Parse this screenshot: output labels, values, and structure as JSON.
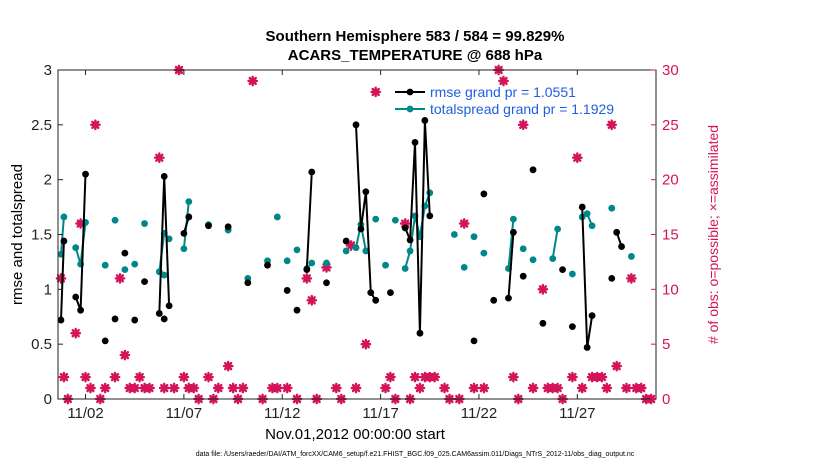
{
  "chart_data": {
    "type": "line",
    "title": "Southern Hemisphere 583 / 584 = 99.829%",
    "subtitle": "ACARS_TEMPERATURE @ 688 hPa",
    "xlabel": "Nov.01,2012 00:00:00 start",
    "ylabel": "rmse and totalspread",
    "y2label": "# of obs: o=possible; ×=assimilated",
    "xlim": [
      0.6,
      31.0
    ],
    "ylim": [
      0,
      3
    ],
    "y2lim": [
      0,
      30
    ],
    "x_ticks": [
      2,
      7,
      12,
      17,
      22,
      27
    ],
    "x_tick_labels": [
      "11/02",
      "11/07",
      "11/12",
      "11/17",
      "11/22",
      "11/27"
    ],
    "y_ticks": [
      0,
      0.5,
      1,
      1.5,
      2,
      2.5,
      3
    ],
    "y_tick_labels": [
      "0",
      "0.5",
      "1",
      "1.5",
      "2",
      "2.5",
      "3"
    ],
    "y2_ticks": [
      0,
      5,
      10,
      15,
      20,
      25,
      30
    ],
    "y2_tick_labels": [
      "0",
      "5",
      "10",
      "15",
      "20",
      "25",
      "30"
    ],
    "grid": false,
    "legend_position": "top-right",
    "colors": {
      "rmse": "#000000",
      "spread": "#00878a",
      "obs": "#d4145a",
      "legend_text": "#1f5fe0"
    },
    "series": [
      {
        "name": "rmse grand pr = 1.0551",
        "color": "#000000",
        "segments": [
          [
            [
              0.75,
              0.72
            ],
            [
              0.9,
              1.44
            ]
          ],
          [
            [
              1.5,
              0.93
            ],
            [
              1.75,
              0.81
            ],
            [
              2.0,
              2.05
            ]
          ],
          [
            [
              5.75,
              0.78
            ],
            [
              6.0,
              2.03
            ],
            [
              6.25,
              0.85
            ]
          ],
          [
            [
              7.0,
              1.51
            ],
            [
              7.25,
              1.66
            ]
          ],
          [
            [
              13.25,
              1.18
            ],
            [
              13.5,
              2.07
            ]
          ],
          [
            [
              15.75,
              2.5
            ],
            [
              16.0,
              1.55
            ],
            [
              16.25,
              1.89
            ],
            [
              16.5,
              0.97
            ],
            [
              16.75,
              0.9
            ]
          ],
          [
            [
              18.25,
              1.56
            ],
            [
              18.5,
              1.45
            ],
            [
              18.75,
              2.34
            ],
            [
              19.0,
              0.6
            ],
            [
              19.25,
              2.54
            ],
            [
              19.5,
              1.67
            ]
          ],
          [
            [
              23.5,
              0.92
            ],
            [
              23.75,
              1.52
            ]
          ],
          [
            [
              27.25,
              1.75
            ],
            [
              27.5,
              0.47
            ],
            [
              27.75,
              0.76
            ]
          ],
          [
            [
              29.0,
              1.52
            ],
            [
              29.25,
              1.39
            ]
          ]
        ],
        "points": [
          [
            3.0,
            0.53
          ],
          [
            3.5,
            0.73
          ],
          [
            4.0,
            1.33
          ],
          [
            4.5,
            0.72
          ],
          [
            5.0,
            1.07
          ],
          [
            6.0,
            0.73
          ],
          [
            8.25,
            1.58
          ],
          [
            9.25,
            1.57
          ],
          [
            10.25,
            1.06
          ],
          [
            11.25,
            1.22
          ],
          [
            12.25,
            0.99
          ],
          [
            12.75,
            0.81
          ],
          [
            14.25,
            1.06
          ],
          [
            15.25,
            1.44
          ],
          [
            17.5,
            0.97
          ],
          [
            21.75,
            0.53
          ],
          [
            22.25,
            1.87
          ],
          [
            22.75,
            0.9
          ],
          [
            24.25,
            1.12
          ],
          [
            24.75,
            2.09
          ],
          [
            25.25,
            0.69
          ],
          [
            26.25,
            1.18
          ],
          [
            26.75,
            0.66
          ],
          [
            28.75,
            1.1
          ]
        ]
      },
      {
        "name": "totalspread grand pr = 1.1929",
        "color": "#00878a",
        "segments": [
          [
            [
              0.75,
              1.32
            ],
            [
              0.9,
              1.66
            ]
          ],
          [
            [
              1.5,
              1.38
            ],
            [
              1.75,
              1.23
            ],
            [
              2.0,
              1.61
            ]
          ],
          [
            [
              5.75,
              1.16
            ],
            [
              6.0,
              1.51
            ],
            [
              6.25,
              1.46
            ]
          ],
          [
            [
              7.0,
              1.37
            ],
            [
              7.25,
              1.8
            ]
          ],
          [
            [
              13.25,
              1.19
            ],
            [
              13.5,
              1.24
            ]
          ],
          [
            [
              15.75,
              1.38
            ],
            [
              16.0,
              1.59
            ],
            [
              16.25,
              1.35
            ]
          ],
          [
            [
              18.25,
              1.19
            ],
            [
              18.5,
              1.35
            ],
            [
              18.75,
              1.67
            ],
            [
              19.0,
              1.48
            ],
            [
              19.25,
              1.76
            ],
            [
              19.5,
              1.88
            ]
          ],
          [
            [
              23.5,
              1.19
            ],
            [
              23.75,
              1.64
            ]
          ],
          [
            [
              25.75,
              1.28
            ],
            [
              26.0,
              1.55
            ]
          ],
          [
            [
              27.25,
              1.66
            ],
            [
              27.5,
              1.69
            ],
            [
              27.75,
              1.58
            ]
          ]
        ],
        "points": [
          [
            3.0,
            1.22
          ],
          [
            3.5,
            1.63
          ],
          [
            4.0,
            1.18
          ],
          [
            4.5,
            1.23
          ],
          [
            5.0,
            1.6
          ],
          [
            6.0,
            1.13
          ],
          [
            8.25,
            1.59
          ],
          [
            9.25,
            1.54
          ],
          [
            10.25,
            1.1
          ],
          [
            11.25,
            1.26
          ],
          [
            11.75,
            1.66
          ],
          [
            12.25,
            1.26
          ],
          [
            12.75,
            1.36
          ],
          [
            14.25,
            1.24
          ],
          [
            15.25,
            1.35
          ],
          [
            16.75,
            1.64
          ],
          [
            17.25,
            1.22
          ],
          [
            17.75,
            1.63
          ],
          [
            20.75,
            1.5
          ],
          [
            21.25,
            1.2
          ],
          [
            21.75,
            1.48
          ],
          [
            22.25,
            1.33
          ],
          [
            24.25,
            1.37
          ],
          [
            24.75,
            1.27
          ],
          [
            26.75,
            1.14
          ],
          [
            28.75,
            1.74
          ],
          [
            29.75,
            1.3
          ]
        ]
      }
    ],
    "obs_points": [
      [
        0.75,
        11
      ],
      [
        0.9,
        2
      ],
      [
        1.1,
        0
      ],
      [
        1.5,
        6
      ],
      [
        1.75,
        16
      ],
      [
        2.0,
        2
      ],
      [
        2.25,
        1
      ],
      [
        2.5,
        25
      ],
      [
        2.75,
        0
      ],
      [
        3.0,
        1
      ],
      [
        3.5,
        2
      ],
      [
        3.75,
        11
      ],
      [
        4.0,
        4
      ],
      [
        4.25,
        1
      ],
      [
        4.5,
        1
      ],
      [
        4.75,
        2
      ],
      [
        5.0,
        1
      ],
      [
        5.25,
        1
      ],
      [
        5.75,
        22
      ],
      [
        6.0,
        1
      ],
      [
        6.5,
        1
      ],
      [
        6.75,
        30
      ],
      [
        7.0,
        2
      ],
      [
        7.25,
        1
      ],
      [
        7.5,
        1
      ],
      [
        7.75,
        0
      ],
      [
        8.25,
        2
      ],
      [
        8.5,
        0
      ],
      [
        8.75,
        1
      ],
      [
        9.25,
        3
      ],
      [
        9.5,
        1
      ],
      [
        9.75,
        0
      ],
      [
        10.0,
        1
      ],
      [
        10.5,
        29
      ],
      [
        11.0,
        0
      ],
      [
        11.5,
        1
      ],
      [
        11.75,
        1
      ],
      [
        12.25,
        1
      ],
      [
        12.75,
        0
      ],
      [
        13.25,
        11
      ],
      [
        13.5,
        9
      ],
      [
        13.75,
        0
      ],
      [
        14.25,
        12
      ],
      [
        14.75,
        1
      ],
      [
        15.0,
        0
      ],
      [
        15.5,
        14
      ],
      [
        15.75,
        1
      ],
      [
        16.25,
        5
      ],
      [
        16.75,
        28
      ],
      [
        17.25,
        1
      ],
      [
        17.5,
        2
      ],
      [
        17.75,
        0
      ],
      [
        18.25,
        16
      ],
      [
        18.5,
        0
      ],
      [
        18.75,
        2
      ],
      [
        19.0,
        1
      ],
      [
        19.25,
        2
      ],
      [
        19.5,
        2
      ],
      [
        19.75,
        2
      ],
      [
        20.25,
        1
      ],
      [
        20.5,
        0
      ],
      [
        21.0,
        0
      ],
      [
        21.25,
        16
      ],
      [
        21.75,
        1
      ],
      [
        22.25,
        1
      ],
      [
        23.0,
        30
      ],
      [
        23.25,
        29
      ],
      [
        23.75,
        2
      ],
      [
        24.0,
        0
      ],
      [
        24.25,
        25
      ],
      [
        24.75,
        1
      ],
      [
        25.25,
        10
      ],
      [
        25.5,
        1
      ],
      [
        25.75,
        1
      ],
      [
        26.0,
        1
      ],
      [
        26.25,
        0
      ],
      [
        26.75,
        2
      ],
      [
        27.0,
        22
      ],
      [
        27.25,
        1
      ],
      [
        27.75,
        2
      ],
      [
        28.0,
        2
      ],
      [
        28.25,
        2
      ],
      [
        28.5,
        1
      ],
      [
        28.75,
        25
      ],
      [
        29.0,
        3
      ],
      [
        29.5,
        1
      ],
      [
        29.75,
        11
      ],
      [
        30.0,
        1
      ],
      [
        30.25,
        1
      ],
      [
        30.5,
        0
      ],
      [
        30.75,
        0
      ]
    ],
    "legend": [
      {
        "label": "rmse grand pr = 1.0551",
        "color": "#000000"
      },
      {
        "label": "totalspread grand pr = 1.1929",
        "color": "#00878a"
      }
    ]
  },
  "footnote": "data file: /Users/raeder/DAI/ATM_forcXX/CAM6_setup/f.e21.FHIST_BGC.f09_025.CAM6assim.011/Diags_NTrS_2012-11/obs_diag_output.nc"
}
